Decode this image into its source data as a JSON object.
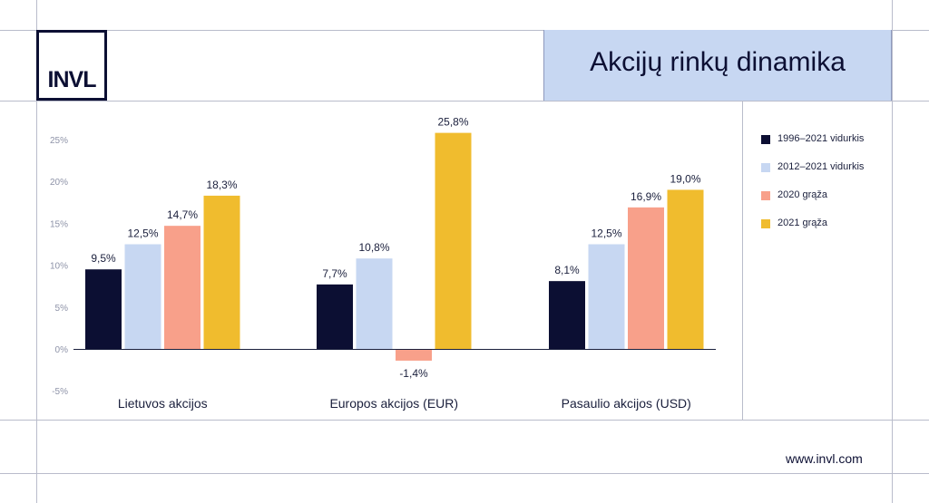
{
  "brand": {
    "logo_text": "INVL",
    "website": "www.invl.com"
  },
  "title": "Akcijų rinkų dinamika",
  "chart_data": {
    "type": "bar",
    "title": "Akcijų rinkų dinamika",
    "categories": [
      "Lietuvos akcijos",
      "Europos akcijos (EUR)",
      "Pasaulio akcijos (USD)"
    ],
    "series": [
      {
        "name": "1996–2021 vidurkis",
        "color": "#0c0f33",
        "values": [
          9.5,
          7.7,
          8.1
        ],
        "labels": [
          "9,5%",
          "7,7%",
          "8,1%"
        ]
      },
      {
        "name": "2012–2021 vidurkis",
        "color": "#c7d7f2",
        "values": [
          12.5,
          10.8,
          12.5
        ],
        "labels": [
          "12,5%",
          "10,8%",
          "12,5%"
        ]
      },
      {
        "name": "2020 grąža",
        "color": "#f8a08a",
        "values": [
          14.7,
          -1.4,
          16.9
        ],
        "labels": [
          "14,7%",
          "-1,4%",
          "16,9%"
        ]
      },
      {
        "name": "2021 grąža",
        "color": "#f0bc2e",
        "values": [
          18.3,
          25.8,
          19.0
        ],
        "labels": [
          "18,3%",
          "25,8%",
          "19,0%"
        ]
      }
    ],
    "ylim": [
      -5,
      25
    ],
    "yticks": [
      -5,
      0,
      5,
      10,
      15,
      20,
      25
    ],
    "ytick_labels": [
      "-5%",
      "0%",
      "5%",
      "10%",
      "15%",
      "20%",
      "25%"
    ],
    "grid": false,
    "legend": "right"
  }
}
